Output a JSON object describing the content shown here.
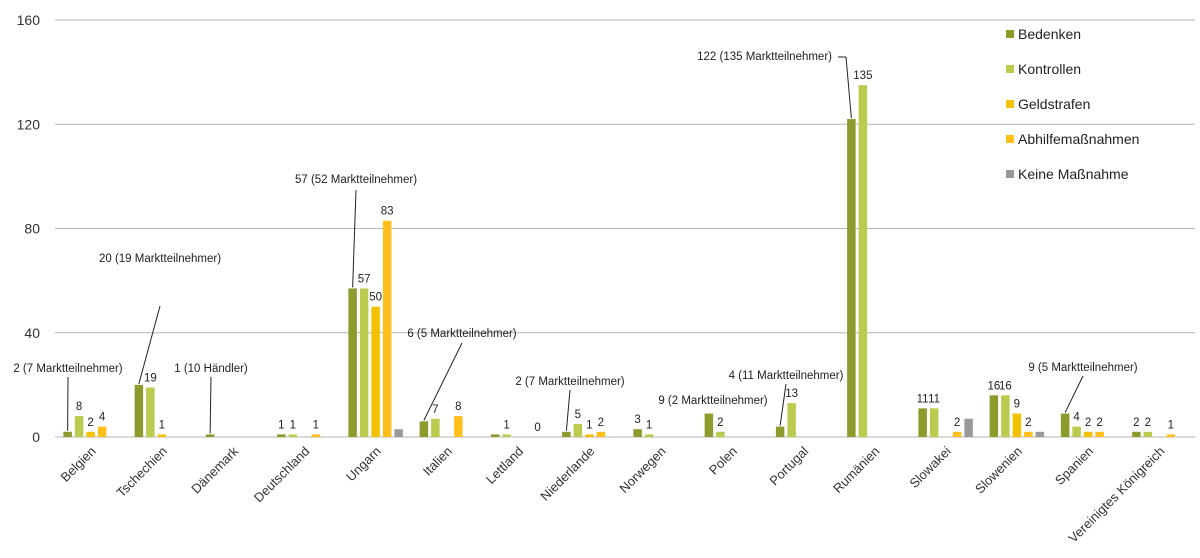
{
  "chart_data": {
    "type": "bar",
    "categories": [
      "Belgien",
      "Tschechien",
      "Dänemark",
      "Deutschland",
      "Ungarn",
      "Italien",
      "Lettland",
      "Niederlande",
      "Norwegen",
      "Polen",
      "Portugal",
      "Rumänien",
      "Slowakei",
      "Slowenien",
      "Spanien",
      "Vereinigtes Königreich"
    ],
    "series": [
      {
        "name": "Bedenken",
        "color": "#8f9a2d",
        "values": [
          2,
          20,
          1,
          1,
          57,
          6,
          1,
          2,
          3,
          9,
          4,
          122,
          11,
          16,
          9,
          2
        ]
      },
      {
        "name": "Kontrollen",
        "color": "#bccb4f",
        "values": [
          8,
          19,
          0,
          1,
          57,
          7,
          1,
          5,
          1,
          2,
          13,
          135,
          11,
          16,
          4,
          2
        ]
      },
      {
        "name": "Geldstrafen",
        "color": "#f2c200",
        "values": [
          2,
          1,
          0,
          0,
          50,
          0,
          0,
          1,
          0,
          0,
          0,
          0,
          0,
          9,
          2,
          0
        ]
      },
      {
        "name": "Abhilfemaßnahmen",
        "color": "#ffbf1a",
        "values": [
          4,
          0,
          0,
          1,
          83,
          8,
          0,
          2,
          0,
          0,
          0,
          0,
          2,
          2,
          2,
          1
        ]
      },
      {
        "name": "Keine Maßnahme",
        "color": "#999999",
        "values": [
          0,
          0,
          0,
          0,
          3,
          0,
          0,
          0,
          0,
          0,
          0,
          0,
          7,
          2,
          0,
          0
        ]
      }
    ],
    "data_labels": [
      [
        "2 (7 Marktteilnehmer)",
        "8",
        "2",
        "4",
        ""
      ],
      [
        "20 (19 Marktteilnehmer)",
        "19",
        "1",
        "",
        ""
      ],
      [
        "1 (10 Händler)",
        "",
        "",
        "",
        ""
      ],
      [
        "1",
        "1",
        "",
        "1",
        ""
      ],
      [
        "57 (52 Marktteilnehmer)",
        "57",
        "50",
        "83",
        ""
      ],
      [
        "6 (5 Marktteilnehmer)",
        "7",
        "",
        "8",
        ""
      ],
      [
        "",
        "1",
        "",
        "0",
        ""
      ],
      [
        "2 (7 Marktteilnehmer)",
        "5",
        "1",
        "2",
        ""
      ],
      [
        "3",
        "1",
        "",
        "",
        ""
      ],
      [
        "9 (2 Marktteilnehmer)",
        "2",
        "",
        "",
        ""
      ],
      [
        "4 (11 Marktteilnehmer)",
        "13",
        "",
        "",
        ""
      ],
      [
        "122 (135 Marktteilnehmer)",
        "135",
        "",
        "",
        ""
      ],
      [
        "11",
        "11",
        "",
        "2",
        ""
      ],
      [
        "16",
        "16",
        "9",
        "2",
        ""
      ],
      [
        "9 (5 Marktteilnehmer)",
        "4",
        "2",
        "2",
        ""
      ],
      [
        "2",
        "2",
        "",
        "1",
        ""
      ]
    ],
    "yticks": [
      0,
      40,
      80,
      120,
      160
    ],
    "ylim": [
      0,
      160
    ],
    "grid": true,
    "legend_position": "top-right"
  }
}
